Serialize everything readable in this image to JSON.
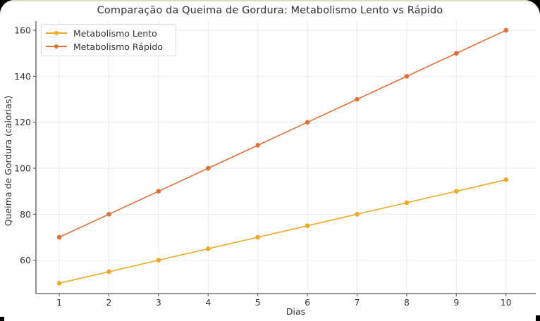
{
  "chart_data": {
    "type": "line",
    "title": "Comparação da Queima de Gordura: Metabolismo Lento vs Rápido",
    "xlabel": "Dias",
    "ylabel": "Queima de Gordura (calorias)",
    "x": [
      1,
      2,
      3,
      4,
      5,
      6,
      7,
      8,
      9,
      10
    ],
    "series": [
      {
        "name": "Metabolismo Lento",
        "color": "#f0a92a",
        "marker": "circle",
        "values": [
          50,
          55,
          60,
          65,
          70,
          75,
          80,
          85,
          90,
          95
        ]
      },
      {
        "name": "Metabolismo Rápido",
        "color": "#e0703a",
        "marker": "circle",
        "values": [
          70,
          80,
          90,
          100,
          110,
          120,
          130,
          140,
          150,
          160
        ]
      }
    ],
    "x_ticks": [
      "1",
      "2",
      "3",
      "4",
      "5",
      "6",
      "7",
      "8",
      "9",
      "10"
    ],
    "y_ticks": [
      "60",
      "80",
      "100",
      "120",
      "140",
      "160"
    ],
    "xlim": [
      0.53,
      10.6
    ],
    "ylim": [
      45.5,
      164
    ],
    "grid": true,
    "legend_position": "upper left"
  }
}
